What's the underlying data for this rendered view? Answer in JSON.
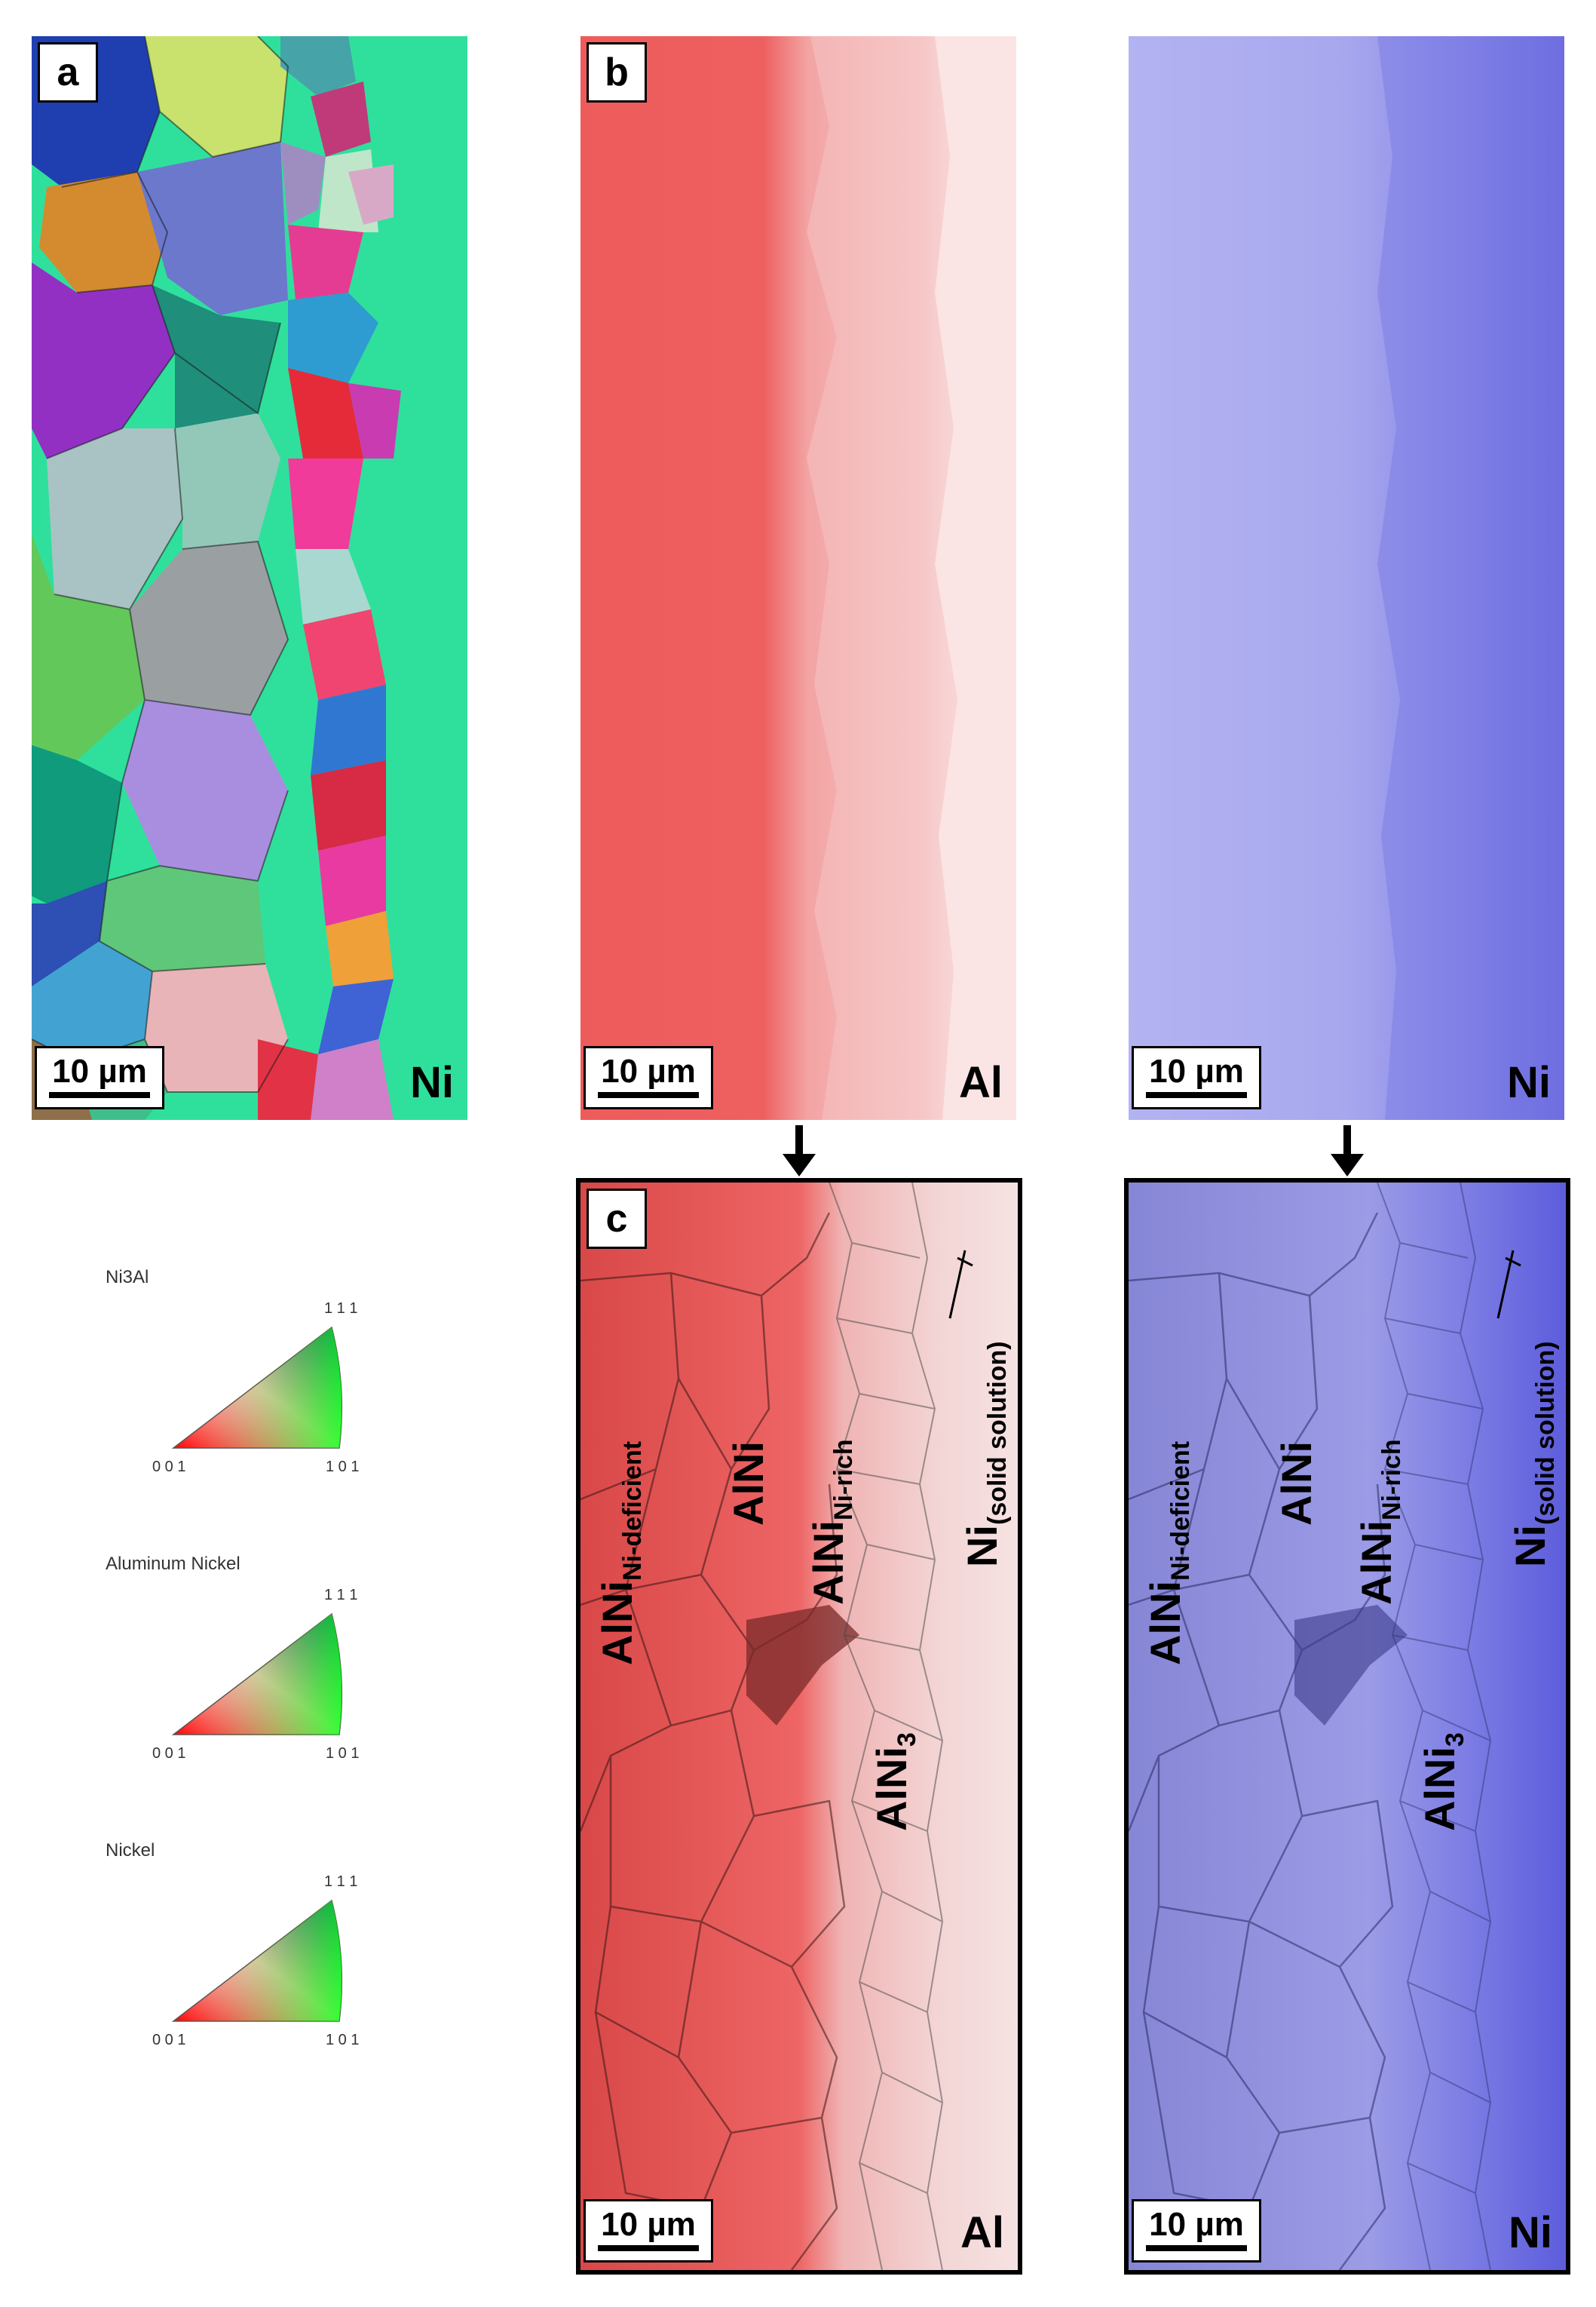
{
  "panel_a": {
    "letter": "a",
    "scale": "10 µm",
    "element": "Ni"
  },
  "panel_b_al": {
    "letter": "b",
    "scale": "10 µm",
    "element": "Al"
  },
  "panel_b_ni": {
    "scale": "10 µm",
    "element": "Ni"
  },
  "panel_c_al": {
    "letter": "c",
    "scale": "10 µm",
    "element": "Al"
  },
  "panel_c_ni": {
    "scale": "10 µm",
    "element": "Ni"
  },
  "phases": {
    "ni_deficient_main": "AlNi",
    "ni_deficient_sub": "Ni-deficient",
    "alni": "AlNi",
    "ni_rich_main": "AlNi",
    "ni_rich_sub": "Ni-rich",
    "alni3_main": "AlNi",
    "alni3_sub": "3",
    "ni_ss_main": "Ni",
    "ni_ss_sub": "(solid solution)"
  },
  "legend": [
    {
      "title": "Ni3Al",
      "c001": "0 0 1",
      "c101": "1 0 1",
      "c111": "1 1 1"
    },
    {
      "title": "Aluminum Nickel",
      "c001": "0 0 1",
      "c101": "1 0 1",
      "c111": "1 1 1"
    },
    {
      "title": "Nickel",
      "c001": "0 0 1",
      "c101": "1 0 1",
      "c111": "1 1 1"
    }
  ],
  "colors": {
    "al_map": "#ee5a5a",
    "ni_map": "#6a6adf",
    "ni_matrix": "#3fe0a6"
  }
}
